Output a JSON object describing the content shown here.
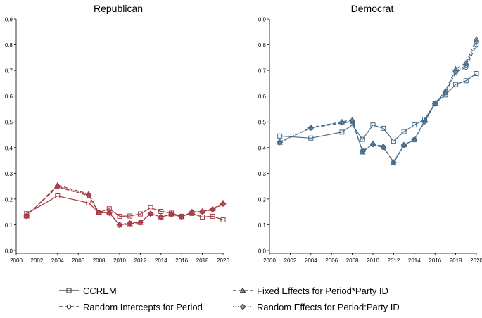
{
  "chart_data": {
    "type": "line",
    "x_ticks": [
      2000,
      2002,
      2004,
      2006,
      2008,
      2010,
      2012,
      2014,
      2016,
      2018,
      2020
    ],
    "y_ticks": [
      0.0,
      0.1,
      0.2,
      0.3,
      0.4,
      0.5,
      0.6,
      0.7,
      0.8,
      0.9
    ],
    "xlim": [
      2000,
      2020
    ],
    "ylim": [
      0,
      0.9
    ],
    "legend": [
      {
        "name": "CCREM",
        "line": "solid",
        "marker": "square"
      },
      {
        "name": "Fixed Effects for Period*Party ID",
        "line": "dashed",
        "marker": "triangle"
      },
      {
        "name": "Random Intercepts for Period",
        "line": "dashed",
        "marker": "circle"
      },
      {
        "name": "Random Effects for Period:Party ID",
        "line": "dotted",
        "marker": "diamond"
      }
    ],
    "panels": [
      {
        "title": "Republican",
        "color": "#a33a45",
        "series": [
          {
            "name": "CCREM",
            "x": [
              2001,
              2004,
              2007,
              2008,
              2009,
              2010,
              2011,
              2012,
              2013,
              2014,
              2015,
              2016,
              2017,
              2018,
              2019,
              2020
            ],
            "values": [
              0.143,
              0.212,
              0.185,
              0.148,
              0.162,
              0.133,
              0.134,
              0.142,
              0.166,
              0.152,
              0.145,
              0.133,
              0.144,
              0.13,
              0.133,
              0.119
            ]
          },
          {
            "name": "Fixed Effects for Period*Party ID",
            "x": [
              2001,
              2004,
              2007,
              2008,
              2009,
              2010,
              2011,
              2012,
              2013,
              2014,
              2015,
              2016,
              2017,
              2018,
              2019,
              2020
            ],
            "values": [
              0.133,
              0.254,
              0.22,
              0.148,
              0.147,
              0.098,
              0.103,
              0.108,
              0.143,
              0.13,
              0.141,
              0.131,
              0.15,
              0.152,
              0.162,
              0.185
            ]
          },
          {
            "name": "Random Intercepts for Period",
            "x": [
              2001,
              2004,
              2007,
              2008,
              2009,
              2010,
              2011,
              2012,
              2013,
              2014,
              2015,
              2016,
              2017,
              2018,
              2019,
              2020
            ],
            "values": [
              0.135,
              0.247,
              0.213,
              0.146,
              0.146,
              0.1,
              0.107,
              0.11,
              0.143,
              0.131,
              0.14,
              0.132,
              0.148,
              0.15,
              0.159,
              0.18
            ]
          },
          {
            "name": "Random Effects for Period:Party ID",
            "x": [
              2001,
              2004,
              2007,
              2008,
              2009,
              2010,
              2011,
              2012,
              2013,
              2014,
              2015,
              2016,
              2017,
              2018,
              2019,
              2020
            ],
            "values": [
              0.134,
              0.25,
              0.216,
              0.147,
              0.146,
              0.099,
              0.105,
              0.109,
              0.143,
              0.13,
              0.14,
              0.131,
              0.149,
              0.151,
              0.16,
              0.182
            ]
          }
        ]
      },
      {
        "title": "Democrat",
        "color": "#466a88",
        "series": [
          {
            "name": "CCREM",
            "x": [
              2001,
              2004,
              2007,
              2008,
              2009,
              2010,
              2011,
              2012,
              2013,
              2014,
              2015,
              2016,
              2017,
              2018,
              2019,
              2020
            ],
            "values": [
              0.445,
              0.437,
              0.46,
              0.488,
              0.432,
              0.488,
              0.475,
              0.425,
              0.462,
              0.488,
              0.51,
              0.572,
              0.605,
              0.645,
              0.66,
              0.688
            ]
          },
          {
            "name": "Fixed Effects for Period*Party ID",
            "x": [
              2001,
              2004,
              2007,
              2008,
              2009,
              2010,
              2011,
              2012,
              2013,
              2014,
              2015,
              2016,
              2017,
              2018,
              2019,
              2020
            ],
            "values": [
              0.42,
              0.478,
              0.5,
              0.508,
              0.382,
              0.415,
              0.405,
              0.34,
              0.41,
              0.43,
              0.505,
              0.572,
              0.62,
              0.705,
              0.73,
              0.822
            ]
          },
          {
            "name": "Random Intercepts for Period",
            "x": [
              2001,
              2004,
              2007,
              2008,
              2009,
              2010,
              2011,
              2012,
              2013,
              2014,
              2015,
              2016,
              2017,
              2018,
              2019,
              2020
            ],
            "values": [
              0.422,
              0.476,
              0.496,
              0.5,
              0.388,
              0.412,
              0.4,
              0.345,
              0.41,
              0.432,
              0.5,
              0.57,
              0.612,
              0.692,
              0.712,
              0.798
            ]
          },
          {
            "name": "Random Effects for Period:Party ID",
            "x": [
              2001,
              2004,
              2007,
              2008,
              2009,
              2010,
              2011,
              2012,
              2013,
              2014,
              2015,
              2016,
              2017,
              2018,
              2019,
              2020
            ],
            "values": [
              0.421,
              0.477,
              0.498,
              0.504,
              0.385,
              0.413,
              0.403,
              0.342,
              0.41,
              0.431,
              0.502,
              0.571,
              0.616,
              0.698,
              0.72,
              0.81
            ]
          }
        ]
      }
    ]
  }
}
